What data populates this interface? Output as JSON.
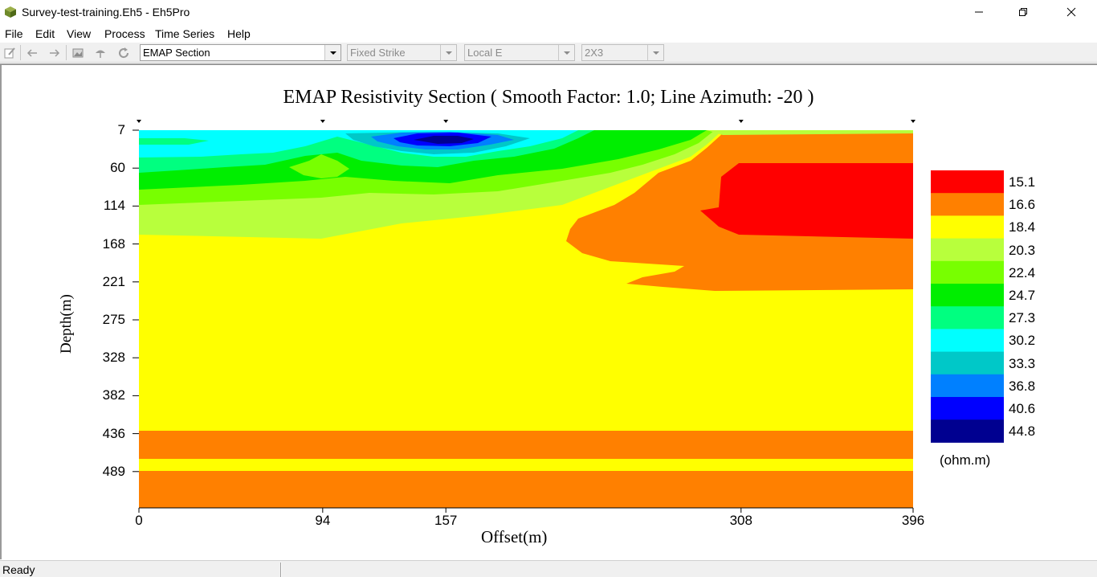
{
  "window": {
    "title": "Survey-test-training.Eh5 - Eh5Pro",
    "app_icon": "cube-icon"
  },
  "menu": [
    "File",
    "Edit",
    "View",
    "Process",
    "Time Series",
    "Help"
  ],
  "toolbar": {
    "buttons": [
      "edit-icon",
      "back-arrow-icon",
      "forward-arrow-icon",
      "image-icon",
      "umbrella-icon",
      "refresh-icon"
    ],
    "combos": [
      {
        "value": "EMAP Section",
        "enabled": true
      },
      {
        "value": "Fixed Strike",
        "enabled": false
      },
      {
        "value": "Local E",
        "enabled": false
      },
      {
        "value": "2X3",
        "enabled": false
      }
    ]
  },
  "status": {
    "text": "Ready"
  },
  "chart_data": {
    "type": "heatmap",
    "title": "EMAP Resistivity Section ( Smooth Factor: 1.0; Line Azimuth: -20 )",
    "xlabel": "Offset(m)",
    "ylabel": "Depth(m)",
    "x_ticks": [
      "0",
      "94",
      "157",
      "308",
      "396"
    ],
    "x_tick_values": [
      0,
      94,
      157,
      308,
      396
    ],
    "y_ticks": [
      "7",
      "60",
      "114",
      "168",
      "221",
      "275",
      "328",
      "382",
      "436",
      "489"
    ],
    "xlim": [
      0,
      396
    ],
    "ylim": [
      7,
      540
    ],
    "station_offsets": [
      0,
      94,
      157,
      308,
      396
    ],
    "legend": {
      "unit": "(ohm.m)",
      "levels": [
        "15.1",
        "16.6",
        "18.4",
        "20.3",
        "22.4",
        "24.7",
        "27.3",
        "30.2",
        "33.3",
        "36.8",
        "40.6",
        "44.8"
      ],
      "colors": [
        "#ff0000",
        "#ff8000",
        "#ffff00",
        "#b8ff3c",
        "#78ff00",
        "#00ee00",
        "#00ff80",
        "#00ffff",
        "#00c8c8",
        "#0080ff",
        "#0000ff",
        "#000090"
      ]
    }
  }
}
